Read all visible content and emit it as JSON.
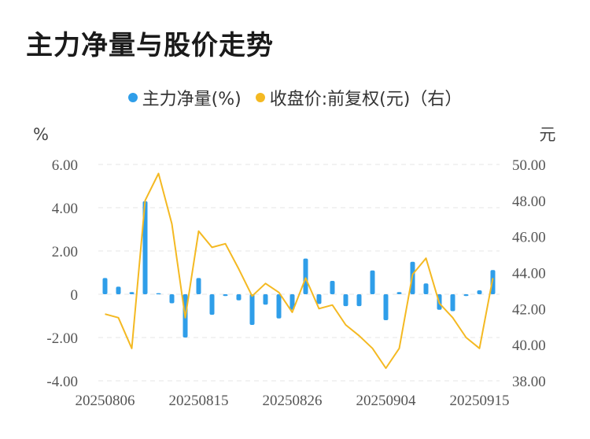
{
  "title": "主力净量与股价走势",
  "legend": {
    "bar_label": "主力净量(%)",
    "line_label": "收盘价:前复权(元)（右）"
  },
  "colors": {
    "bar": "#2f9ee9",
    "line": "#f4b922",
    "grid": "#e5e5e5"
  },
  "chart_data": {
    "type": "bar+line",
    "title": "主力净量与股价走势",
    "left_axis": {
      "unit": "%",
      "ylim": [
        -4,
        6
      ],
      "ticks": [
        "6.00",
        "4.00",
        "2.00",
        "0",
        "-2.00",
        "-4.00"
      ]
    },
    "right_axis": {
      "unit": "元",
      "ylim": [
        38,
        50
      ],
      "ticks": [
        "50.00",
        "48.00",
        "46.00",
        "44.00",
        "42.00",
        "40.00",
        "38.00"
      ]
    },
    "x_tick_labels": [
      "20250806",
      "20250815",
      "20250826",
      "20250904",
      "20250915"
    ],
    "x_tick_index": [
      0,
      7,
      14,
      21,
      28
    ],
    "dates": [
      "20250806",
      "20250807",
      "20250808",
      "20250811",
      "20250812",
      "20250813",
      "20250814",
      "20250815",
      "20250818",
      "20250819",
      "20250820",
      "20250821",
      "20250822",
      "20250825",
      "20250826",
      "20250827",
      "20250828",
      "20250829",
      "20250901",
      "20250902",
      "20250903",
      "20250904",
      "20250905",
      "20250908",
      "20250909",
      "20250910",
      "20250911",
      "20250912",
      "20250915",
      "20250916"
    ],
    "series": [
      {
        "name": "主力净量(%)",
        "kind": "bar",
        "axis": "left",
        "values": [
          0.75,
          0.35,
          0.1,
          4.3,
          0.05,
          -0.42,
          -2.0,
          0.75,
          -0.95,
          -0.08,
          -0.28,
          -1.42,
          -0.48,
          -1.12,
          -0.72,
          1.65,
          -0.45,
          0.62,
          -0.55,
          -0.55,
          1.1,
          -1.2,
          0.1,
          1.5,
          0.5,
          -0.72,
          -0.78,
          -0.08,
          0.18,
          1.12
        ]
      },
      {
        "name": "收盘价:前复权(元)（右）",
        "kind": "line",
        "axis": "right",
        "values": [
          41.7,
          41.5,
          39.8,
          48.0,
          49.5,
          46.7,
          41.5,
          46.3,
          45.4,
          45.6,
          44.2,
          42.7,
          43.4,
          42.9,
          41.8,
          43.7,
          42.0,
          42.2,
          41.1,
          40.5,
          39.8,
          38.7,
          39.8,
          43.9,
          44.8,
          42.3,
          41.5,
          40.4,
          39.8,
          43.7
        ]
      }
    ]
  }
}
